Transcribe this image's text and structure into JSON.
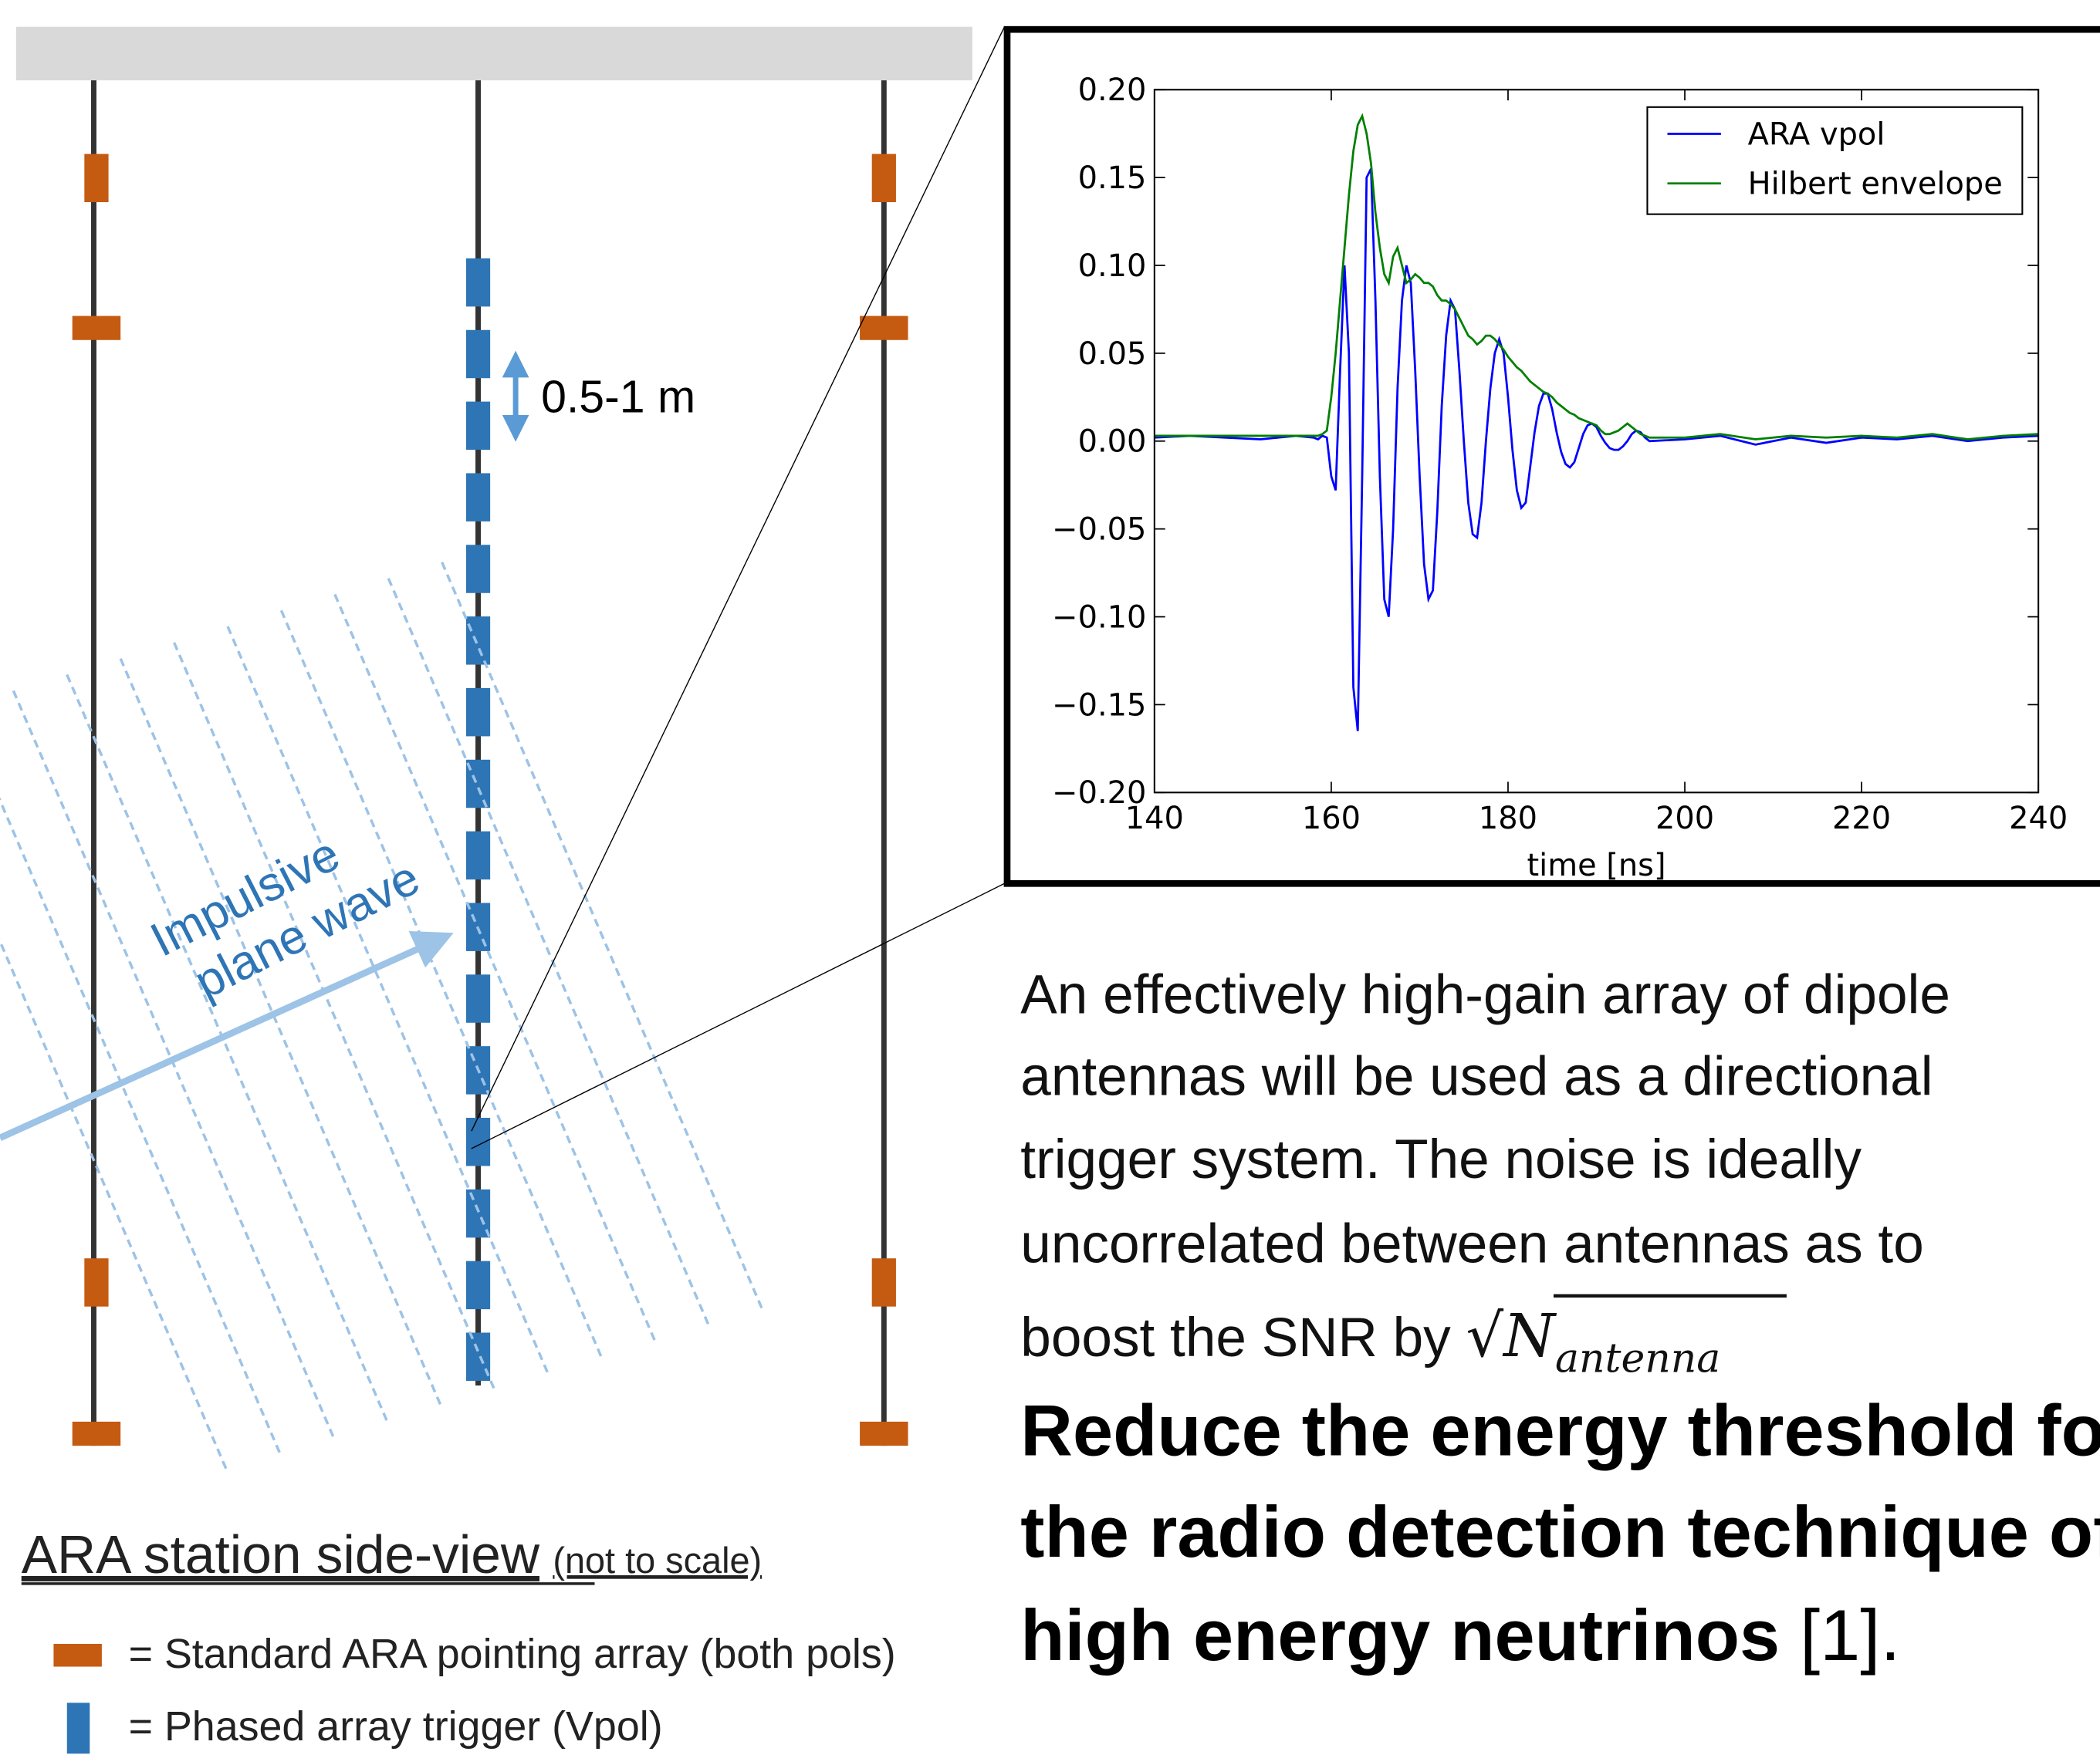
{
  "diagram": {
    "spacing_label": "0.5-1 m",
    "wave_label": [
      "Impulsive",
      "plane wave"
    ],
    "caption": "ARA station side-view",
    "caption_note": "(not to scale)",
    "legend": [
      "= Standard ARA pointing array (both pols)",
      "= Phased array trigger (Vpol)"
    ]
  },
  "text": {
    "paragraph": [
      "An effectively high-gain array of dipole",
      "antennas will be used as a directional",
      "trigger system. The noise is ideally",
      "uncorrelated between antennas as to",
      "boost the SNR by "
    ],
    "formula": {
      "root": "√",
      "base": "N",
      "subscript": "antenna"
    },
    "heading": [
      "Reduce the energy threshold for",
      "the radio detection technique of",
      "high energy neutrinos"
    ],
    "reference": " [1]."
  },
  "chart_data": {
    "type": "line",
    "xlabel": "time [ns]",
    "x": [
      140,
      144,
      148,
      152,
      156,
      158,
      158.5,
      159,
      159.5,
      160,
      160.5,
      161,
      161.5,
      162,
      162.5,
      163,
      163.5,
      164,
      164.5,
      165,
      165.5,
      166,
      166.5,
      167,
      167.5,
      168,
      168.5,
      169,
      169.5,
      170,
      170.5,
      171,
      171.5,
      172,
      172.5,
      173,
      173.5,
      174,
      174.5,
      175,
      175.5,
      176,
      176.5,
      177,
      177.5,
      178,
      178.5,
      179,
      179.5,
      180,
      180.5,
      181,
      181.5,
      182,
      182.5,
      183,
      183.5,
      184,
      184.5,
      185,
      185.5,
      186,
      186.5,
      187,
      187.5,
      188,
      188.5,
      189,
      189.5,
      190,
      190.5,
      191,
      191.5,
      192,
      192.5,
      193,
      193.5,
      194,
      194.5,
      195,
      195.5,
      196,
      200,
      204,
      208,
      212,
      216,
      220,
      224,
      228,
      232,
      236,
      240
    ],
    "series": [
      {
        "name": "ARA vpol",
        "color": "#0000ff",
        "values": [
          0.002,
          0.003,
          0.002,
          0.001,
          0.003,
          0.002,
          0.001,
          0.003,
          0.002,
          -0.02,
          -0.028,
          0.04,
          0.1,
          0.05,
          -0.14,
          -0.165,
          -0.02,
          0.15,
          0.155,
          0.08,
          -0.02,
          -0.09,
          -0.1,
          -0.05,
          0.03,
          0.08,
          0.1,
          0.09,
          0.04,
          -0.02,
          -0.07,
          -0.09,
          -0.085,
          -0.04,
          0.02,
          0.06,
          0.08,
          0.075,
          0.04,
          0.0,
          -0.035,
          -0.053,
          -0.055,
          -0.035,
          0.0,
          0.03,
          0.05,
          0.058,
          0.05,
          0.025,
          -0.005,
          -0.028,
          -0.038,
          -0.035,
          -0.015,
          0.005,
          0.02,
          0.027,
          0.027,
          0.018,
          0.005,
          -0.006,
          -0.013,
          -0.015,
          -0.012,
          -0.004,
          0.004,
          0.009,
          0.01,
          0.008,
          0.003,
          -0.001,
          -0.004,
          -0.005,
          -0.005,
          -0.003,
          0.0,
          0.004,
          0.006,
          0.005,
          0.002,
          0.0,
          0.001,
          0.003,
          -0.002,
          0.002,
          -0.001,
          0.002,
          0.001,
          0.003,
          0.0,
          0.002,
          0.003
        ]
      },
      {
        "name": "Hilbert envelope",
        "color": "#008000",
        "values": [
          0.003,
          0.003,
          0.003,
          0.003,
          0.003,
          0.003,
          0.003,
          0.004,
          0.006,
          0.025,
          0.05,
          0.08,
          0.11,
          0.14,
          0.165,
          0.18,
          0.185,
          0.175,
          0.158,
          0.13,
          0.11,
          0.095,
          0.09,
          0.105,
          0.11,
          0.1,
          0.09,
          0.092,
          0.095,
          0.093,
          0.09,
          0.09,
          0.088,
          0.083,
          0.08,
          0.08,
          0.078,
          0.075,
          0.07,
          0.065,
          0.06,
          0.058,
          0.055,
          0.057,
          0.06,
          0.06,
          0.058,
          0.055,
          0.052,
          0.048,
          0.045,
          0.042,
          0.04,
          0.037,
          0.034,
          0.032,
          0.03,
          0.028,
          0.027,
          0.025,
          0.022,
          0.02,
          0.018,
          0.016,
          0.015,
          0.013,
          0.012,
          0.011,
          0.01,
          0.009,
          0.006,
          0.004,
          0.004,
          0.005,
          0.006,
          0.008,
          0.01,
          0.008,
          0.006,
          0.004,
          0.003,
          0.002,
          0.002,
          0.004,
          0.001,
          0.003,
          0.002,
          0.003,
          0.002,
          0.004,
          0.001,
          0.003,
          0.004
        ]
      }
    ],
    "xlim": [
      140,
      240
    ],
    "ylim": [
      -0.2,
      0.2
    ],
    "xticks": [
      140,
      160,
      180,
      200,
      220,
      240
    ],
    "yticks": [
      {
        "value": -0.2,
        "label": "−0.20"
      },
      {
        "value": -0.15,
        "label": "−0.15"
      },
      {
        "value": -0.1,
        "label": "−0.10"
      },
      {
        "value": -0.05,
        "label": "−0.05"
      },
      {
        "value": 0,
        "label": "0.00"
      },
      {
        "value": 0.05,
        "label": "0.05"
      },
      {
        "value": 0.1,
        "label": "0.10"
      },
      {
        "value": 0.15,
        "label": "0.15"
      },
      {
        "value": 0.2,
        "label": "0.20"
      }
    ],
    "legend": "upper right"
  }
}
